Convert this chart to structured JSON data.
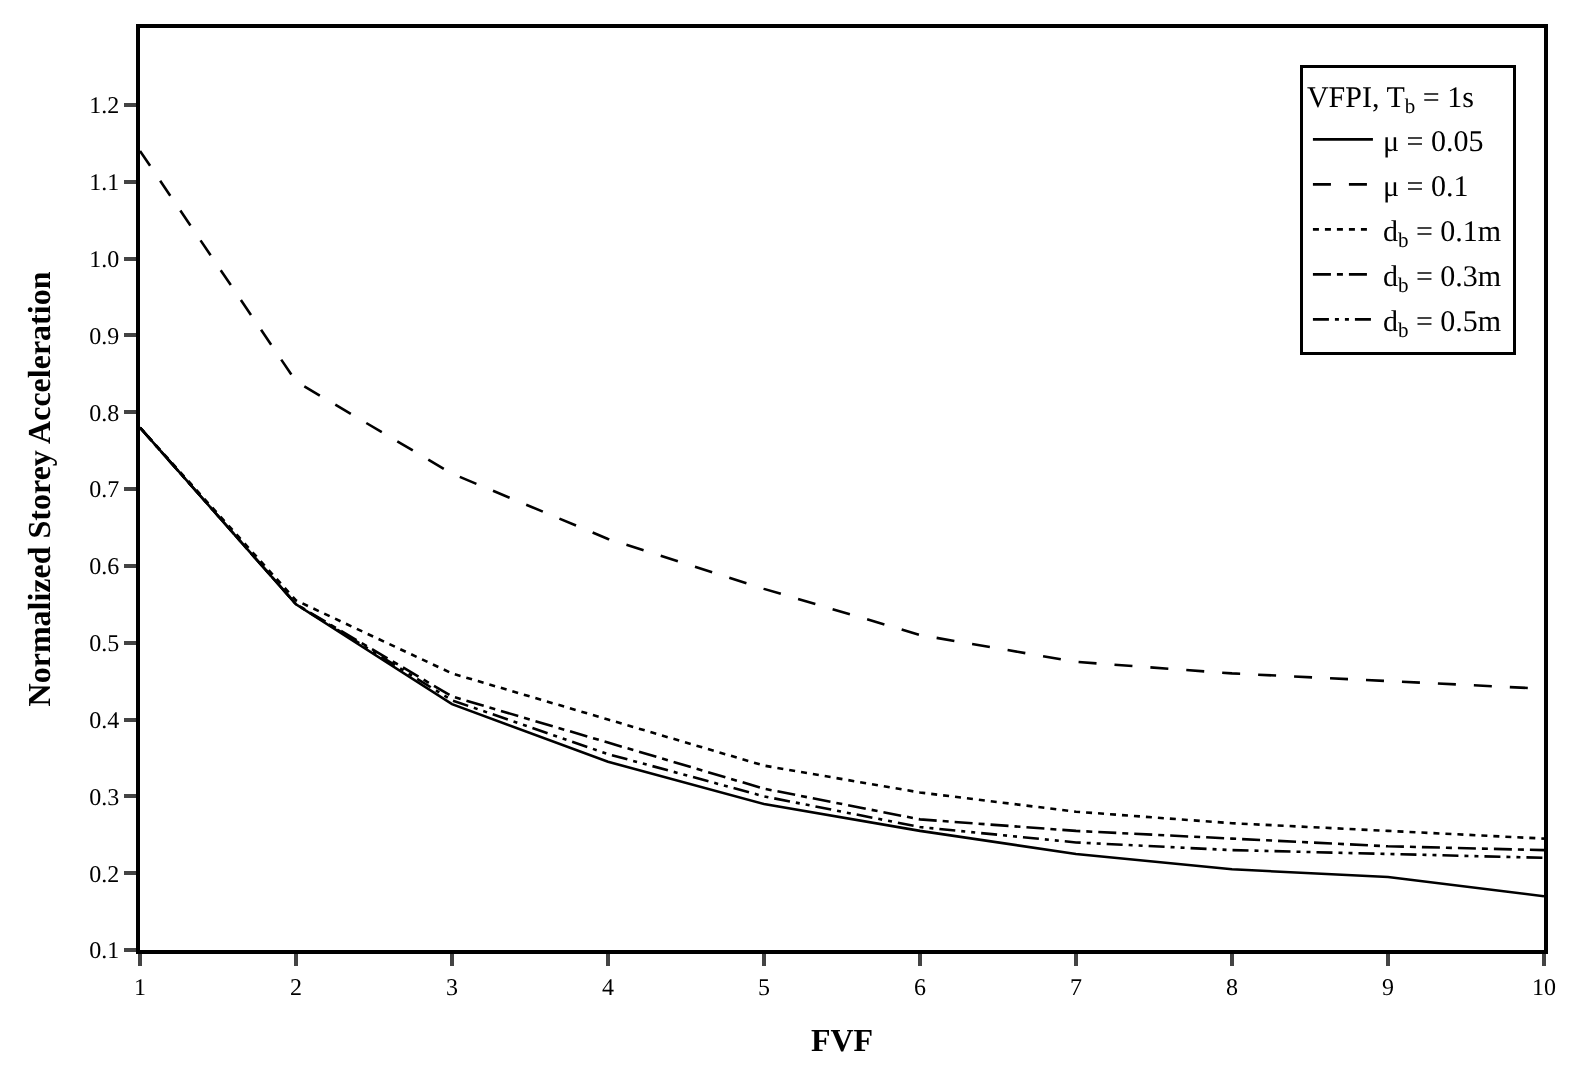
{
  "chart_data": {
    "type": "line",
    "xlabel": "FVF",
    "ylabel": "Normalized Storey Acceleration",
    "legend_title": "VFPI, T$_{b}$ = 1s",
    "legend": "top right",
    "grid": false,
    "marker": "none",
    "x": [
      1,
      2,
      3,
      4,
      5,
      6,
      7,
      8,
      9,
      10
    ],
    "xlim": [
      1,
      10
    ],
    "xticks": [
      1,
      2,
      3,
      4,
      5,
      6,
      7,
      8,
      9,
      10
    ],
    "ylim": [
      0.1,
      1.3
    ],
    "yticks": [
      0.1,
      0.2,
      0.3,
      0.4,
      0.5,
      0.6,
      0.7,
      0.8,
      0.9,
      {
        "value": 1,
        "label": "1.0"
      },
      1.1,
      1.2
    ],
    "series": [
      {
        "name": "μ = 0.05",
        "color": "#000000",
        "line_style": "solid",
        "values": [
          0.78,
          0.55,
          0.42,
          0.345,
          0.29,
          0.255,
          0.225,
          0.205,
          0.195,
          0.17
        ]
      },
      {
        "name": "μ = 0.1",
        "color": "#000000",
        "line_style": "dashed",
        "values": [
          1.14,
          0.84,
          0.72,
          0.635,
          0.57,
          0.51,
          0.475,
          0.46,
          0.45,
          0.44
        ]
      },
      {
        "name": "d$_{b}$ = 0.1m",
        "color": "#000000",
        "line_style": "dotted",
        "values": [
          0.78,
          0.555,
          0.46,
          0.4,
          0.34,
          0.305,
          0.28,
          0.265,
          0.255,
          0.245
        ]
      },
      {
        "name": "d$_{b}$ = 0.3m",
        "color": "#000000",
        "line_style": "dashdot",
        "values": [
          0.78,
          0.55,
          0.43,
          0.37,
          0.31,
          0.27,
          0.255,
          0.245,
          0.235,
          0.23
        ]
      },
      {
        "name": "d$_{b}$ = 0.5m",
        "color": "#000000",
        "line_style": "dashdotdot",
        "values": [
          0.78,
          0.55,
          0.425,
          0.355,
          0.3,
          0.26,
          0.24,
          0.23,
          0.225,
          0.22
        ]
      }
    ]
  }
}
